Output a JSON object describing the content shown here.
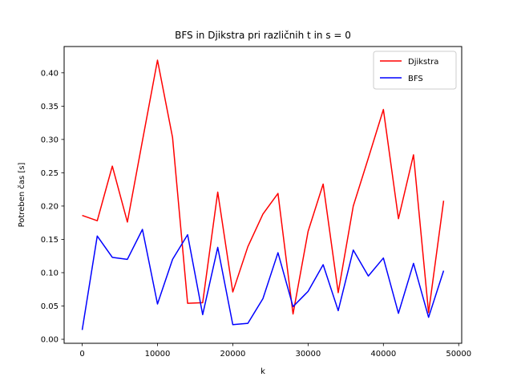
{
  "chart_data": {
    "type": "line",
    "title": "BFS in Djikstra pri različnih t in s = 0",
    "xlabel": "k",
    "ylabel": "Potreben čas [s]",
    "xlim": [
      -2400,
      50400
    ],
    "ylim": [
      -0.006,
      0.4395
    ],
    "xticks": [
      0,
      10000,
      20000,
      30000,
      40000,
      50000
    ],
    "xtick_labels": [
      "0",
      "10000",
      "20000",
      "30000",
      "40000",
      "50000"
    ],
    "yticks": [
      0.0,
      0.05,
      0.1,
      0.15,
      0.2,
      0.25,
      0.3,
      0.35,
      0.4
    ],
    "ytick_labels": [
      "0.00",
      "0.05",
      "0.10",
      "0.15",
      "0.20",
      "0.25",
      "0.30",
      "0.35",
      "0.40"
    ],
    "grid": false,
    "legend_position": "top-right",
    "x": [
      0,
      2000,
      4000,
      6000,
      8000,
      10000,
      12000,
      14000,
      16000,
      18000,
      20000,
      22000,
      24000,
      26000,
      28000,
      30000,
      32000,
      34000,
      36000,
      38000,
      40000,
      42000,
      44000,
      46000,
      48000
    ],
    "series": [
      {
        "name": "Djikstra",
        "color": "#ff0000",
        "values": [
          0.186,
          0.178,
          0.26,
          0.176,
          0.298,
          0.419,
          0.303,
          0.054,
          0.055,
          0.221,
          0.071,
          0.139,
          0.188,
          0.219,
          0.038,
          0.162,
          0.233,
          0.07,
          0.2,
          0.272,
          0.345,
          0.181,
          0.277,
          0.04,
          0.208
        ]
      },
      {
        "name": "BFS",
        "color": "#0000ff",
        "values": [
          0.014,
          0.155,
          0.123,
          0.12,
          0.165,
          0.053,
          0.12,
          0.157,
          0.037,
          0.138,
          0.022,
          0.024,
          0.061,
          0.13,
          0.049,
          0.072,
          0.112,
          0.043,
          0.134,
          0.095,
          0.122,
          0.039,
          0.114,
          0.033,
          0.103
        ]
      }
    ]
  }
}
